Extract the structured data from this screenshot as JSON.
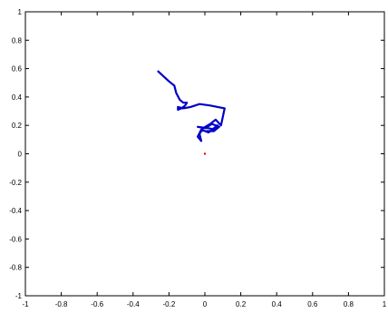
{
  "chart_data": {
    "type": "line",
    "title": "",
    "xlabel": "",
    "ylabel": "",
    "xlim": [
      -1,
      1
    ],
    "ylim": [
      -1,
      1
    ],
    "grid": false,
    "x_ticks": [
      "-1",
      "-0.8",
      "-0.6",
      "-0.4",
      "-0.2",
      "0",
      "0.2",
      "0.4",
      "0.6",
      "0.8",
      "1"
    ],
    "y_ticks": [
      "1",
      "0.8",
      "0.6",
      "0.4",
      "0.2",
      "0",
      "-0.2",
      "-0.4",
      "-0.6",
      "-0.8",
      "-1"
    ],
    "series": [
      {
        "color": "#0000c8",
        "points": [
          [
            -0.26,
            0.58
          ],
          [
            -0.2,
            0.51
          ],
          [
            -0.17,
            0.48
          ],
          [
            -0.16,
            0.43
          ],
          [
            -0.14,
            0.38
          ],
          [
            -0.12,
            0.36
          ],
          [
            -0.1,
            0.36
          ],
          [
            -0.11,
            0.34
          ],
          [
            -0.13,
            0.32
          ],
          [
            -0.15,
            0.31
          ],
          [
            -0.15,
            0.33
          ],
          [
            -0.12,
            0.32
          ],
          [
            -0.08,
            0.33
          ],
          [
            -0.03,
            0.35
          ],
          [
            0.03,
            0.34
          ],
          [
            0.11,
            0.32
          ],
          [
            0.09,
            0.2
          ],
          [
            0.06,
            0.24
          ],
          [
            0.03,
            0.21
          ],
          [
            -0.01,
            0.18
          ],
          [
            -0.03,
            0.14
          ],
          [
            -0.02,
            0.09
          ],
          [
            -0.04,
            0.12
          ],
          [
            -0.02,
            0.17
          ],
          [
            0.02,
            0.15
          ],
          [
            0.07,
            0.2
          ],
          [
            0.06,
            0.17
          ],
          [
            0.02,
            0.18
          ],
          [
            -0.04,
            0.19
          ],
          [
            0.0,
            0.18
          ],
          [
            0.04,
            0.21
          ],
          [
            0.08,
            0.19
          ],
          [
            0.05,
            0.16
          ],
          [
            0.01,
            0.16
          ]
        ]
      },
      {
        "color": "#ff0000",
        "points": [
          [
            0.0,
            0.0
          ]
        ]
      }
    ]
  }
}
